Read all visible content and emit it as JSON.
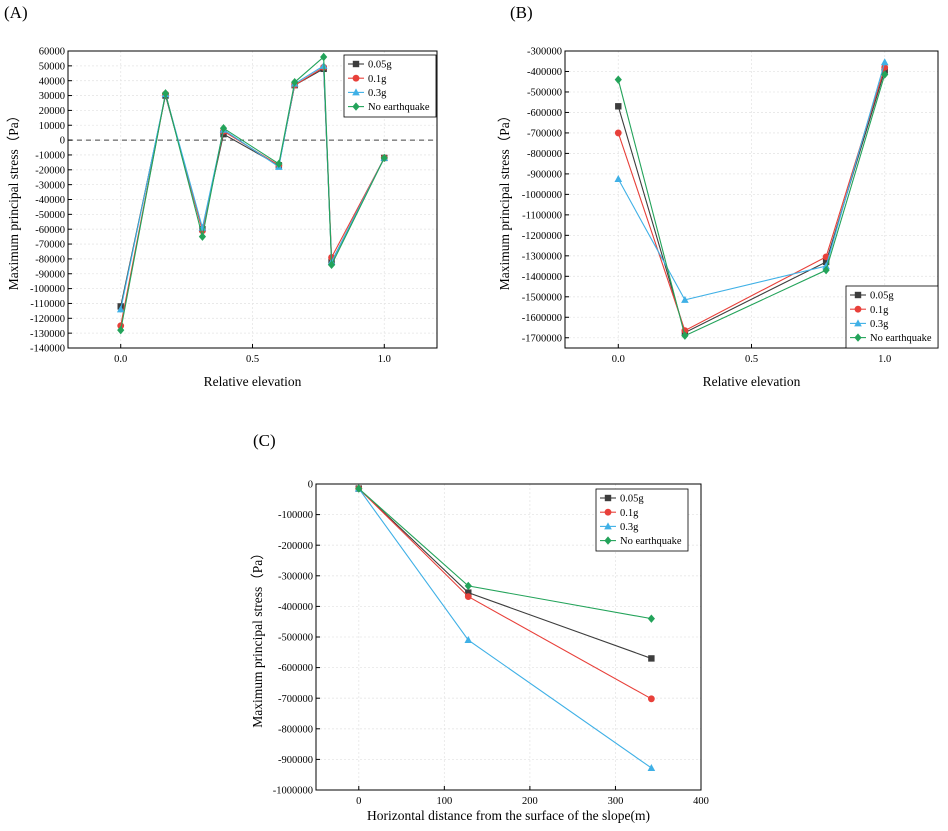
{
  "figure": {
    "series_colors": {
      "0.05g": "#3d3d3d",
      "0.1g": "#e8403a",
      "0.3g": "#3fb0e6",
      "No earthquake": "#23a35a"
    },
    "series_markers": {
      "0.05g": "square",
      "0.1g": "circle",
      "0.3g": "triangle",
      "No earthquake": "diamond"
    }
  },
  "chart_data": [
    {
      "panel_label": "(A)",
      "type": "line",
      "xlabel": "Relative elevation",
      "ylabel": "Maximum principal stress（Pa）",
      "xlim": [
        -0.2,
        1.2
      ],
      "ylim": [
        -140000,
        60000
      ],
      "xticks": [
        0.0,
        0.5,
        1.0
      ],
      "xtick_labels": [
        "0.0",
        "0.5",
        "1.0"
      ],
      "yticks": [
        60000,
        50000,
        40000,
        30000,
        20000,
        10000,
        0,
        -10000,
        -20000,
        -30000,
        -40000,
        -50000,
        -60000,
        -70000,
        -80000,
        -90000,
        -100000,
        -110000,
        -120000,
        -130000,
        -140000
      ],
      "ytick_labels": [
        "60000",
        "50000",
        "40000",
        "30000",
        "20000",
        "10000",
        "0",
        "-10000",
        "-20000",
        "-30000",
        "-40000",
        "-50000",
        "-60000",
        "-70000",
        "-80000",
        "-90000",
        "-100000",
        "-110000",
        "-120000",
        "-130000",
        "-140000"
      ],
      "reference_line": 0,
      "legend_position": "top-right",
      "legend": [
        "0.05g",
        "0.1g",
        "0.3g",
        "No earthquake"
      ],
      "x": [
        0.0,
        0.17,
        0.31,
        0.39,
        0.6,
        0.66,
        0.77,
        0.8,
        1.0
      ],
      "series": [
        {
          "name": "0.05g",
          "values": [
            -112000,
            30000,
            -60000,
            4000,
            -17000,
            37000,
            48000,
            -82000,
            -12000
          ]
        },
        {
          "name": "0.1g",
          "values": [
            -125000,
            31000,
            -61000,
            6000,
            -17000,
            37000,
            49000,
            -79000,
            -12000
          ]
        },
        {
          "name": "0.3g",
          "values": [
            -114000,
            31000,
            -59000,
            7000,
            -18000,
            38000,
            50000,
            -82000,
            -12000
          ]
        },
        {
          "name": "No earthquake",
          "values": [
            -128000,
            31500,
            -65000,
            8000,
            -16000,
            39000,
            56000,
            -84000,
            -12000
          ]
        }
      ]
    },
    {
      "panel_label": "(B)",
      "type": "line",
      "xlabel": "Relative elevation",
      "ylabel": "Maximum principal stress（Pa）",
      "xlim": [
        -0.2,
        1.2
      ],
      "ylim": [
        -1750000,
        -300000
      ],
      "xticks": [
        0.0,
        0.5,
        1.0
      ],
      "xtick_labels": [
        "0.0",
        "0.5",
        "1.0"
      ],
      "yticks": [
        -300000,
        -400000,
        -500000,
        -600000,
        -700000,
        -800000,
        -900000,
        -1000000,
        -1100000,
        -1200000,
        -1300000,
        -1400000,
        -1500000,
        -1600000,
        -1700000
      ],
      "ytick_labels": [
        "-300000",
        "-400000",
        "-500000",
        "-600000",
        "-700000",
        "-800000",
        "-900000",
        "-1000000",
        "-1100000",
        "-1200000",
        "-1300000",
        "-1400000",
        "-1500000",
        "-1600000",
        "-1700000"
      ],
      "legend_position": "bottom-right",
      "legend": [
        "0.05g",
        "0.1g",
        "0.3g",
        "No earthquake"
      ],
      "x": [
        0.0,
        0.25,
        0.78,
        1.0
      ],
      "series": [
        {
          "name": "0.05g",
          "values": [
            -570000,
            -1675000,
            -1330000,
            -395000
          ]
        },
        {
          "name": "0.1g",
          "values": [
            -700000,
            -1665000,
            -1305000,
            -380000
          ]
        },
        {
          "name": "0.3g",
          "values": [
            -925000,
            -1515000,
            -1350000,
            -355000
          ]
        },
        {
          "name": "No earthquake",
          "values": [
            -440000,
            -1690000,
            -1370000,
            -415000
          ]
        }
      ]
    },
    {
      "panel_label": "(C)",
      "type": "line",
      "xlabel": "Horizontal distance from the surface of the slope(m)",
      "ylabel": "Maximum principal stress（Pa）",
      "xlim": [
        -50,
        400
      ],
      "ylim": [
        -1000000,
        0
      ],
      "xticks": [
        0,
        100,
        200,
        300,
        400
      ],
      "xtick_labels": [
        "0",
        "100",
        "200",
        "300",
        "400"
      ],
      "yticks": [
        0,
        -100000,
        -200000,
        -300000,
        -400000,
        -500000,
        -600000,
        -700000,
        -800000,
        -900000,
        -1000000
      ],
      "ytick_labels": [
        "0",
        "-100000",
        "-200000",
        "-300000",
        "-400000",
        "-500000",
        "-600000",
        "-700000",
        "-800000",
        "-900000",
        "-1000000"
      ],
      "legend_position": "top-right",
      "legend": [
        "0.05g",
        "0.1g",
        "0.3g",
        "No earthquake"
      ],
      "x": [
        0,
        128,
        342
      ],
      "series": [
        {
          "name": "0.05g",
          "values": [
            -15000,
            -355000,
            -570000
          ]
        },
        {
          "name": "0.1g",
          "values": [
            -15000,
            -368000,
            -702000
          ]
        },
        {
          "name": "0.3g",
          "values": [
            -15000,
            -510000,
            -928000
          ]
        },
        {
          "name": "No earthquake",
          "values": [
            -15000,
            -333000,
            -440000
          ]
        }
      ]
    }
  ]
}
